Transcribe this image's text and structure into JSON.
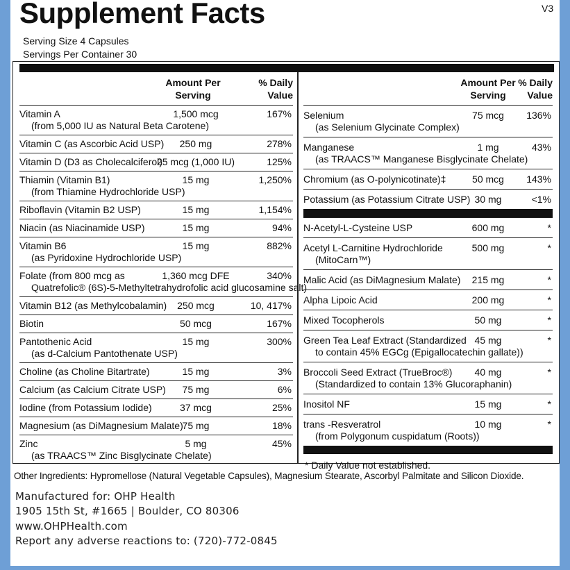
{
  "header": {
    "title": "Supplement Facts",
    "version": "V3",
    "serving_size": "Serving Size  4 Capsules",
    "servings_per_container": "Servings Per Container  30"
  },
  "table": {
    "left": {
      "headers": {
        "amount": "Amount Per Serving",
        "dv": "% Daily Value"
      },
      "rows": [
        {
          "name": "Vitamin A",
          "sub": "(from 5,000 IU as Natural Beta Carotene)",
          "amount": "1,500 mcg",
          "dv": "167%"
        },
        {
          "name": "Vitamin C (as Ascorbic Acid USP)",
          "amount": "250 mg",
          "dv": "278%"
        },
        {
          "name": "Vitamin D (D3 as Cholecalciferol)",
          "amount": "25 mcg (1,000 IU)",
          "dv": "125%"
        },
        {
          "name": "Thiamin (Vitamin B1)",
          "sub": "(from Thiamine Hydrochloride USP)",
          "amount": "15 mg",
          "dv": "1,250%"
        },
        {
          "name": "Riboflavin (Vitamin B2 USP)",
          "amount": "15 mg",
          "dv": "1,154%"
        },
        {
          "name": "Niacin (as Niacinamide USP)",
          "amount": "15 mg",
          "dv": "94%"
        },
        {
          "name": "Vitamin B6",
          "sub": "(as Pyridoxine Hydrochloride USP)",
          "amount": "15 mg",
          "dv": "882%"
        },
        {
          "name": "Folate (from 800 mcg as",
          "sub": "Quatrefolic® (6S)-5-Methyltetrahydrofolic acid glucosamine salt)",
          "amount": "1,360 mcg DFE",
          "dv": "340%"
        },
        {
          "name": "Vitamin B12 (as Methylcobalamin)",
          "amount": "250 mcg",
          "dv": "10, 417%"
        },
        {
          "name": "Biotin",
          "amount": "50 mcg",
          "dv": "167%"
        },
        {
          "name": "Pantothenic Acid",
          "sub": "(as d-Calcium Pantothenate USP)",
          "amount": "15 mg",
          "dv": "300%"
        },
        {
          "name": "Choline (as Choline Bitartrate)",
          "amount": "15 mg",
          "dv": "3%"
        },
        {
          "name": "Calcium (as Calcium Citrate USP)",
          "amount": "75 mg",
          "dv": "6%"
        },
        {
          "name": "Iodine (from Potassium Iodide)",
          "amount": "37 mcg",
          "dv": "25%"
        },
        {
          "name": "Magnesium (as DiMagnesium Malate)",
          "amount": "75 mg",
          "dv": "18%"
        },
        {
          "name": "Zinc",
          "sub": "(as TRAACS™ Zinc Bisglycinate Chelate)",
          "amount": "5 mg",
          "dv": "45%"
        }
      ]
    },
    "right": {
      "headers": {
        "amount": "Amount Per Serving",
        "dv": "% Daily Value"
      },
      "rows": [
        {
          "name": "Selenium",
          "sub": "(as Selenium Glycinate Complex)",
          "amount": "75 mcg",
          "dv": "136%"
        },
        {
          "name": "Manganese",
          "sub": "(as TRAACS™ Manganese Bisglycinate Chelate)",
          "amount": "1 mg",
          "dv": "43%"
        },
        {
          "name": "Chromium (as O-polynicotinate)‡",
          "amount": "50 mcg",
          "dv": "143%"
        },
        {
          "name": "Potassium (as Potassium Citrate USP)",
          "amount": "30 mg",
          "dv": "<1%"
        }
      ],
      "rows2": [
        {
          "name": "N-Acetyl-L-Cysteine USP",
          "amount": "600 mg",
          "dv": "*"
        },
        {
          "name": "Acetyl L-Carnitine Hydrochloride",
          "sub": "(MitoCarn™)",
          "amount": "500 mg",
          "dv": "*"
        },
        {
          "name": "Malic Acid (as DiMagnesium Malate)",
          "amount": "215 mg",
          "dv": "*"
        },
        {
          "name": "Alpha Lipoic Acid",
          "amount": "200 mg",
          "dv": "*"
        },
        {
          "name": "Mixed Tocopherols",
          "amount": "50 mg",
          "dv": "*"
        },
        {
          "name": "Green Tea Leaf Extract  (Standardized",
          "sub": "to contain 45% EGCg (Epigallocatechin gallate))",
          "amount": "45 mg",
          "dv": "*"
        },
        {
          "name": "Broccoli Seed Extract (TrueBroc®)",
          "sub": "(Standardized to contain 13% Glucoraphanin)",
          "amount": "40 mg",
          "dv": "*"
        },
        {
          "name": "Inositol NF",
          "amount": "15 mg",
          "dv": "*"
        },
        {
          "name": "trans -Resveratrol",
          "sub": "(from Polygonum cuspidatum (Roots))",
          "amount": "10 mg",
          "dv": "*"
        }
      ],
      "footnote": "* Daily Value not established."
    }
  },
  "other_ingredients": "Other Ingredients: Hypromellose (Natural Vegetable Capsules), Magnesium Stearate, Ascorbyl Palmitate and Silicon Dioxide.",
  "manufacturer": [
    "Manufactured for: OHP Health",
    "1905 15th St, #1665  |  Boulder, CO 80306",
    "www.OHPHealth.com",
    "Report any adverse reactions to: (720)-772-0845"
  ]
}
